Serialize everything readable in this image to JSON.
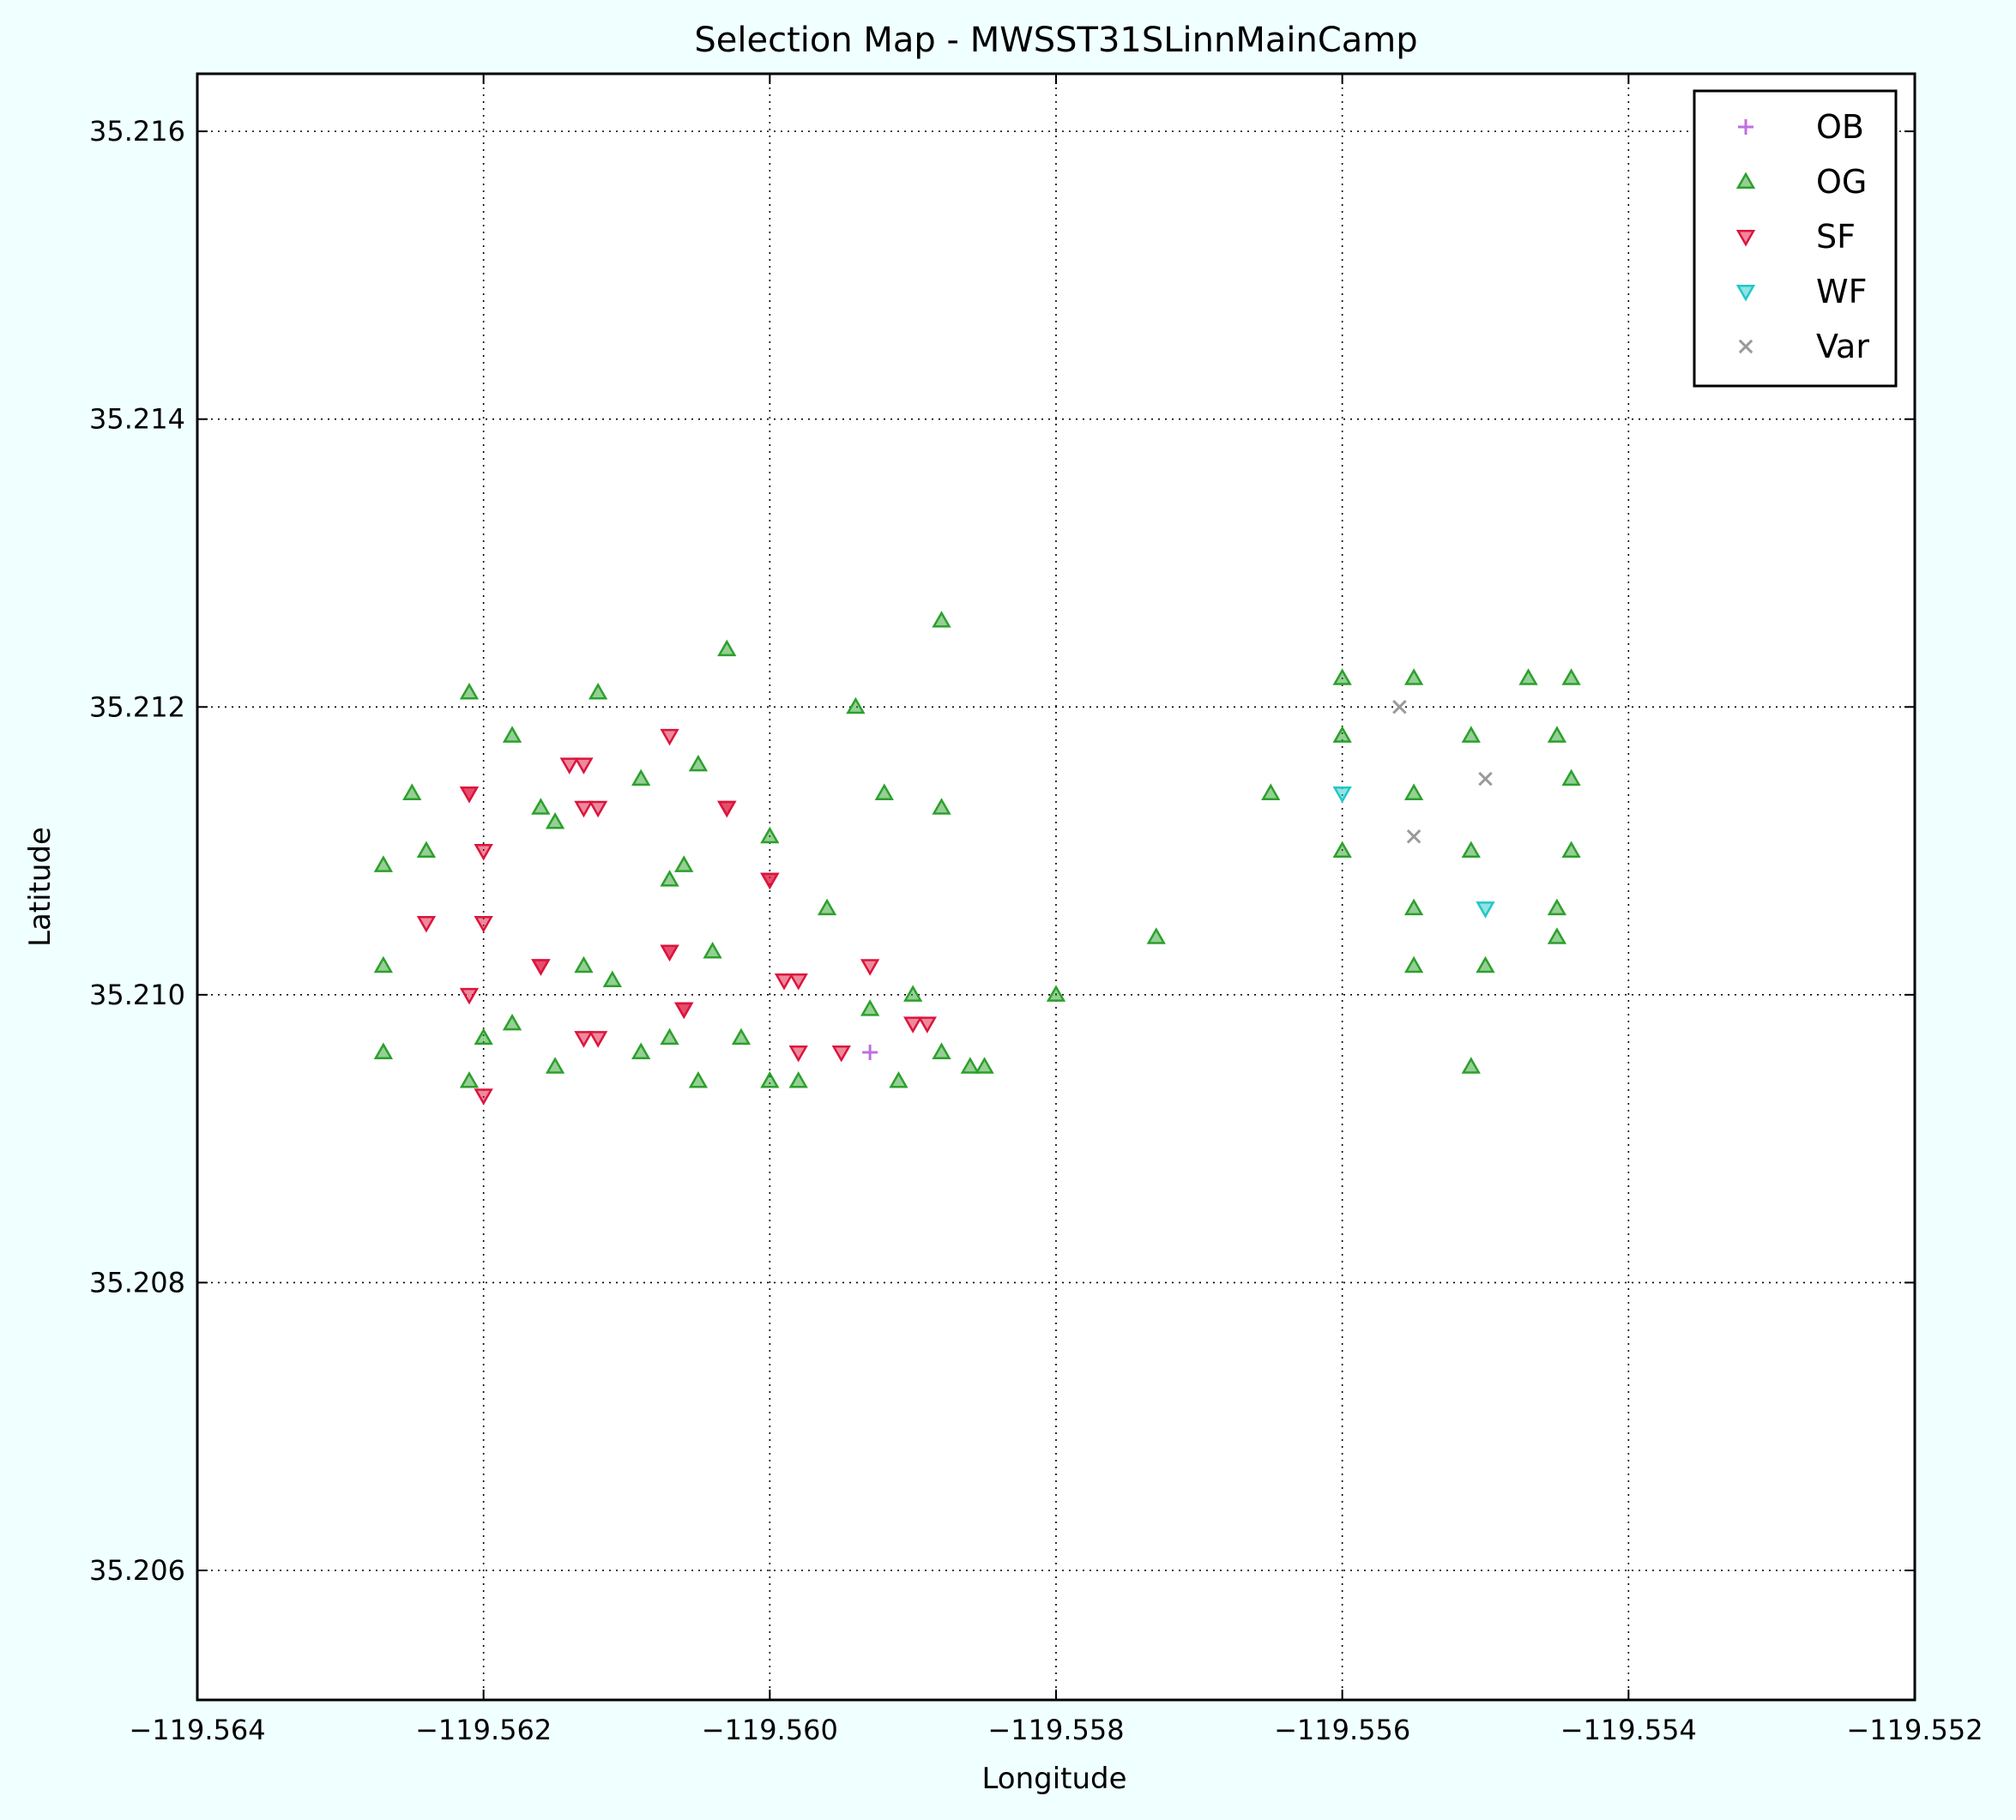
{
  "chart_data": {
    "type": "scatter",
    "title": "Selection Map - MWSST31SLinnMainCamp",
    "xlabel": "Longitude",
    "ylabel": "Latitude",
    "xlim": [
      -119.564,
      -119.552
    ],
    "ylim": [
      35.2051,
      35.2164
    ],
    "xticks": [
      -119.564,
      -119.562,
      -119.56,
      -119.558,
      -119.556,
      -119.554,
      -119.552
    ],
    "xtick_labels": [
      "−119.564",
      "−119.562",
      "−119.560",
      "−119.558",
      "−119.556",
      "−119.554",
      "−119.552"
    ],
    "yticks": [
      35.206,
      35.208,
      35.21,
      35.212,
      35.214,
      35.216
    ],
    "ytick_labels": [
      "35.206",
      "35.208",
      "35.210",
      "35.212",
      "35.214",
      "35.216"
    ],
    "grid": true,
    "legend_position": "top-right",
    "series": [
      {
        "name": "OB",
        "marker": "plus",
        "color": "#bf6fdf",
        "points": [
          [
            -119.5593,
            35.2096
          ]
        ]
      },
      {
        "name": "OG",
        "marker": "triangle-up",
        "color": "#2ca02c",
        "points": [
          [
            -119.5621,
            35.2121
          ],
          [
            -119.5612,
            35.2121
          ],
          [
            -119.5603,
            35.2124
          ],
          [
            -119.5588,
            35.2126
          ],
          [
            -119.5594,
            35.212
          ],
          [
            -119.5618,
            35.2118
          ],
          [
            -119.5625,
            35.2114
          ],
          [
            -119.5609,
            35.2115
          ],
          [
            -119.5605,
            35.2116
          ],
          [
            -119.5616,
            35.2113
          ],
          [
            -119.5615,
            35.2112
          ],
          [
            -119.5592,
            35.2114
          ],
          [
            -119.5588,
            35.2113
          ],
          [
            -119.56,
            35.2111
          ],
          [
            -119.5624,
            35.211
          ],
          [
            -119.5627,
            35.2109
          ],
          [
            -119.5606,
            35.2109
          ],
          [
            -119.5607,
            35.2108
          ],
          [
            -119.5596,
            35.2106
          ],
          [
            -119.5604,
            35.2103
          ],
          [
            -119.5627,
            35.2102
          ],
          [
            -119.5613,
            35.2102
          ],
          [
            -119.5611,
            35.2101
          ],
          [
            -119.5593,
            35.2099
          ],
          [
            -119.559,
            35.21
          ],
          [
            -119.5618,
            35.2098
          ],
          [
            -119.562,
            35.2097
          ],
          [
            -119.5607,
            35.2097
          ],
          [
            -119.5602,
            35.2097
          ],
          [
            -119.5627,
            35.2096
          ],
          [
            -119.5588,
            35.2096
          ],
          [
            -119.5609,
            35.2096
          ],
          [
            -119.5615,
            35.2095
          ],
          [
            -119.5605,
            35.2094
          ],
          [
            -119.5621,
            35.2094
          ],
          [
            -119.56,
            35.2094
          ],
          [
            -119.5598,
            35.2094
          ],
          [
            -119.5591,
            35.2094
          ],
          [
            -119.5586,
            35.2095
          ],
          [
            -119.5585,
            35.2095
          ],
          [
            -119.558,
            35.21
          ],
          [
            -119.5573,
            35.2104
          ],
          [
            -119.556,
            35.2122
          ],
          [
            -119.5555,
            35.2122
          ],
          [
            -119.5547,
            35.2122
          ],
          [
            -119.5544,
            35.2122
          ],
          [
            -119.556,
            35.2118
          ],
          [
            -119.5551,
            35.2118
          ],
          [
            -119.5545,
            35.2118
          ],
          [
            -119.5565,
            35.2114
          ],
          [
            -119.5555,
            35.2114
          ],
          [
            -119.5544,
            35.2115
          ],
          [
            -119.556,
            35.211
          ],
          [
            -119.5551,
            35.211
          ],
          [
            -119.5544,
            35.211
          ],
          [
            -119.5555,
            35.2106
          ],
          [
            -119.5545,
            35.2106
          ],
          [
            -119.5545,
            35.2104
          ],
          [
            -119.5555,
            35.2102
          ],
          [
            -119.555,
            35.2102
          ],
          [
            -119.5551,
            35.2095
          ]
        ]
      },
      {
        "name": "SF",
        "marker": "triangle-down",
        "color": "#dc143c",
        "points": [
          [
            -119.5607,
            35.2118
          ],
          [
            -119.5614,
            35.2116
          ],
          [
            -119.5613,
            35.2116
          ],
          [
            -119.5621,
            35.2114
          ],
          [
            -119.5621,
            35.2114
          ],
          [
            -119.5613,
            35.2113
          ],
          [
            -119.5612,
            35.2113
          ],
          [
            -119.5603,
            35.2113
          ],
          [
            -119.5603,
            35.2113
          ],
          [
            -119.562,
            35.211
          ],
          [
            -119.56,
            35.2108
          ],
          [
            -119.56,
            35.2108
          ],
          [
            -119.5624,
            35.2105
          ],
          [
            -119.562,
            35.2105
          ],
          [
            -119.5616,
            35.2102
          ],
          [
            -119.5616,
            35.2102
          ],
          [
            -119.5607,
            35.2103
          ],
          [
            -119.5607,
            35.2103
          ],
          [
            -119.5593,
            35.2102
          ],
          [
            -119.5598,
            35.2101
          ],
          [
            -119.5599,
            35.2101
          ],
          [
            -119.5621,
            35.21
          ],
          [
            -119.5606,
            35.2099
          ],
          [
            -119.5606,
            35.2099
          ],
          [
            -119.5613,
            35.2097
          ],
          [
            -119.5612,
            35.2097
          ],
          [
            -119.559,
            35.2098
          ],
          [
            -119.5589,
            35.2098
          ],
          [
            -119.5598,
            35.2096
          ],
          [
            -119.5595,
            35.2096
          ],
          [
            -119.562,
            35.2093
          ]
        ]
      },
      {
        "name": "WF",
        "marker": "triangle-down",
        "color": "#22c7c7",
        "points": [
          [
            -119.556,
            35.2114
          ],
          [
            -119.555,
            35.2106
          ]
        ]
      },
      {
        "name": "Var",
        "marker": "x",
        "color": "#9a9a9a",
        "points": [
          [
            -119.5556,
            35.212
          ],
          [
            -119.555,
            35.2115
          ],
          [
            -119.5555,
            35.2111
          ]
        ]
      }
    ]
  }
}
